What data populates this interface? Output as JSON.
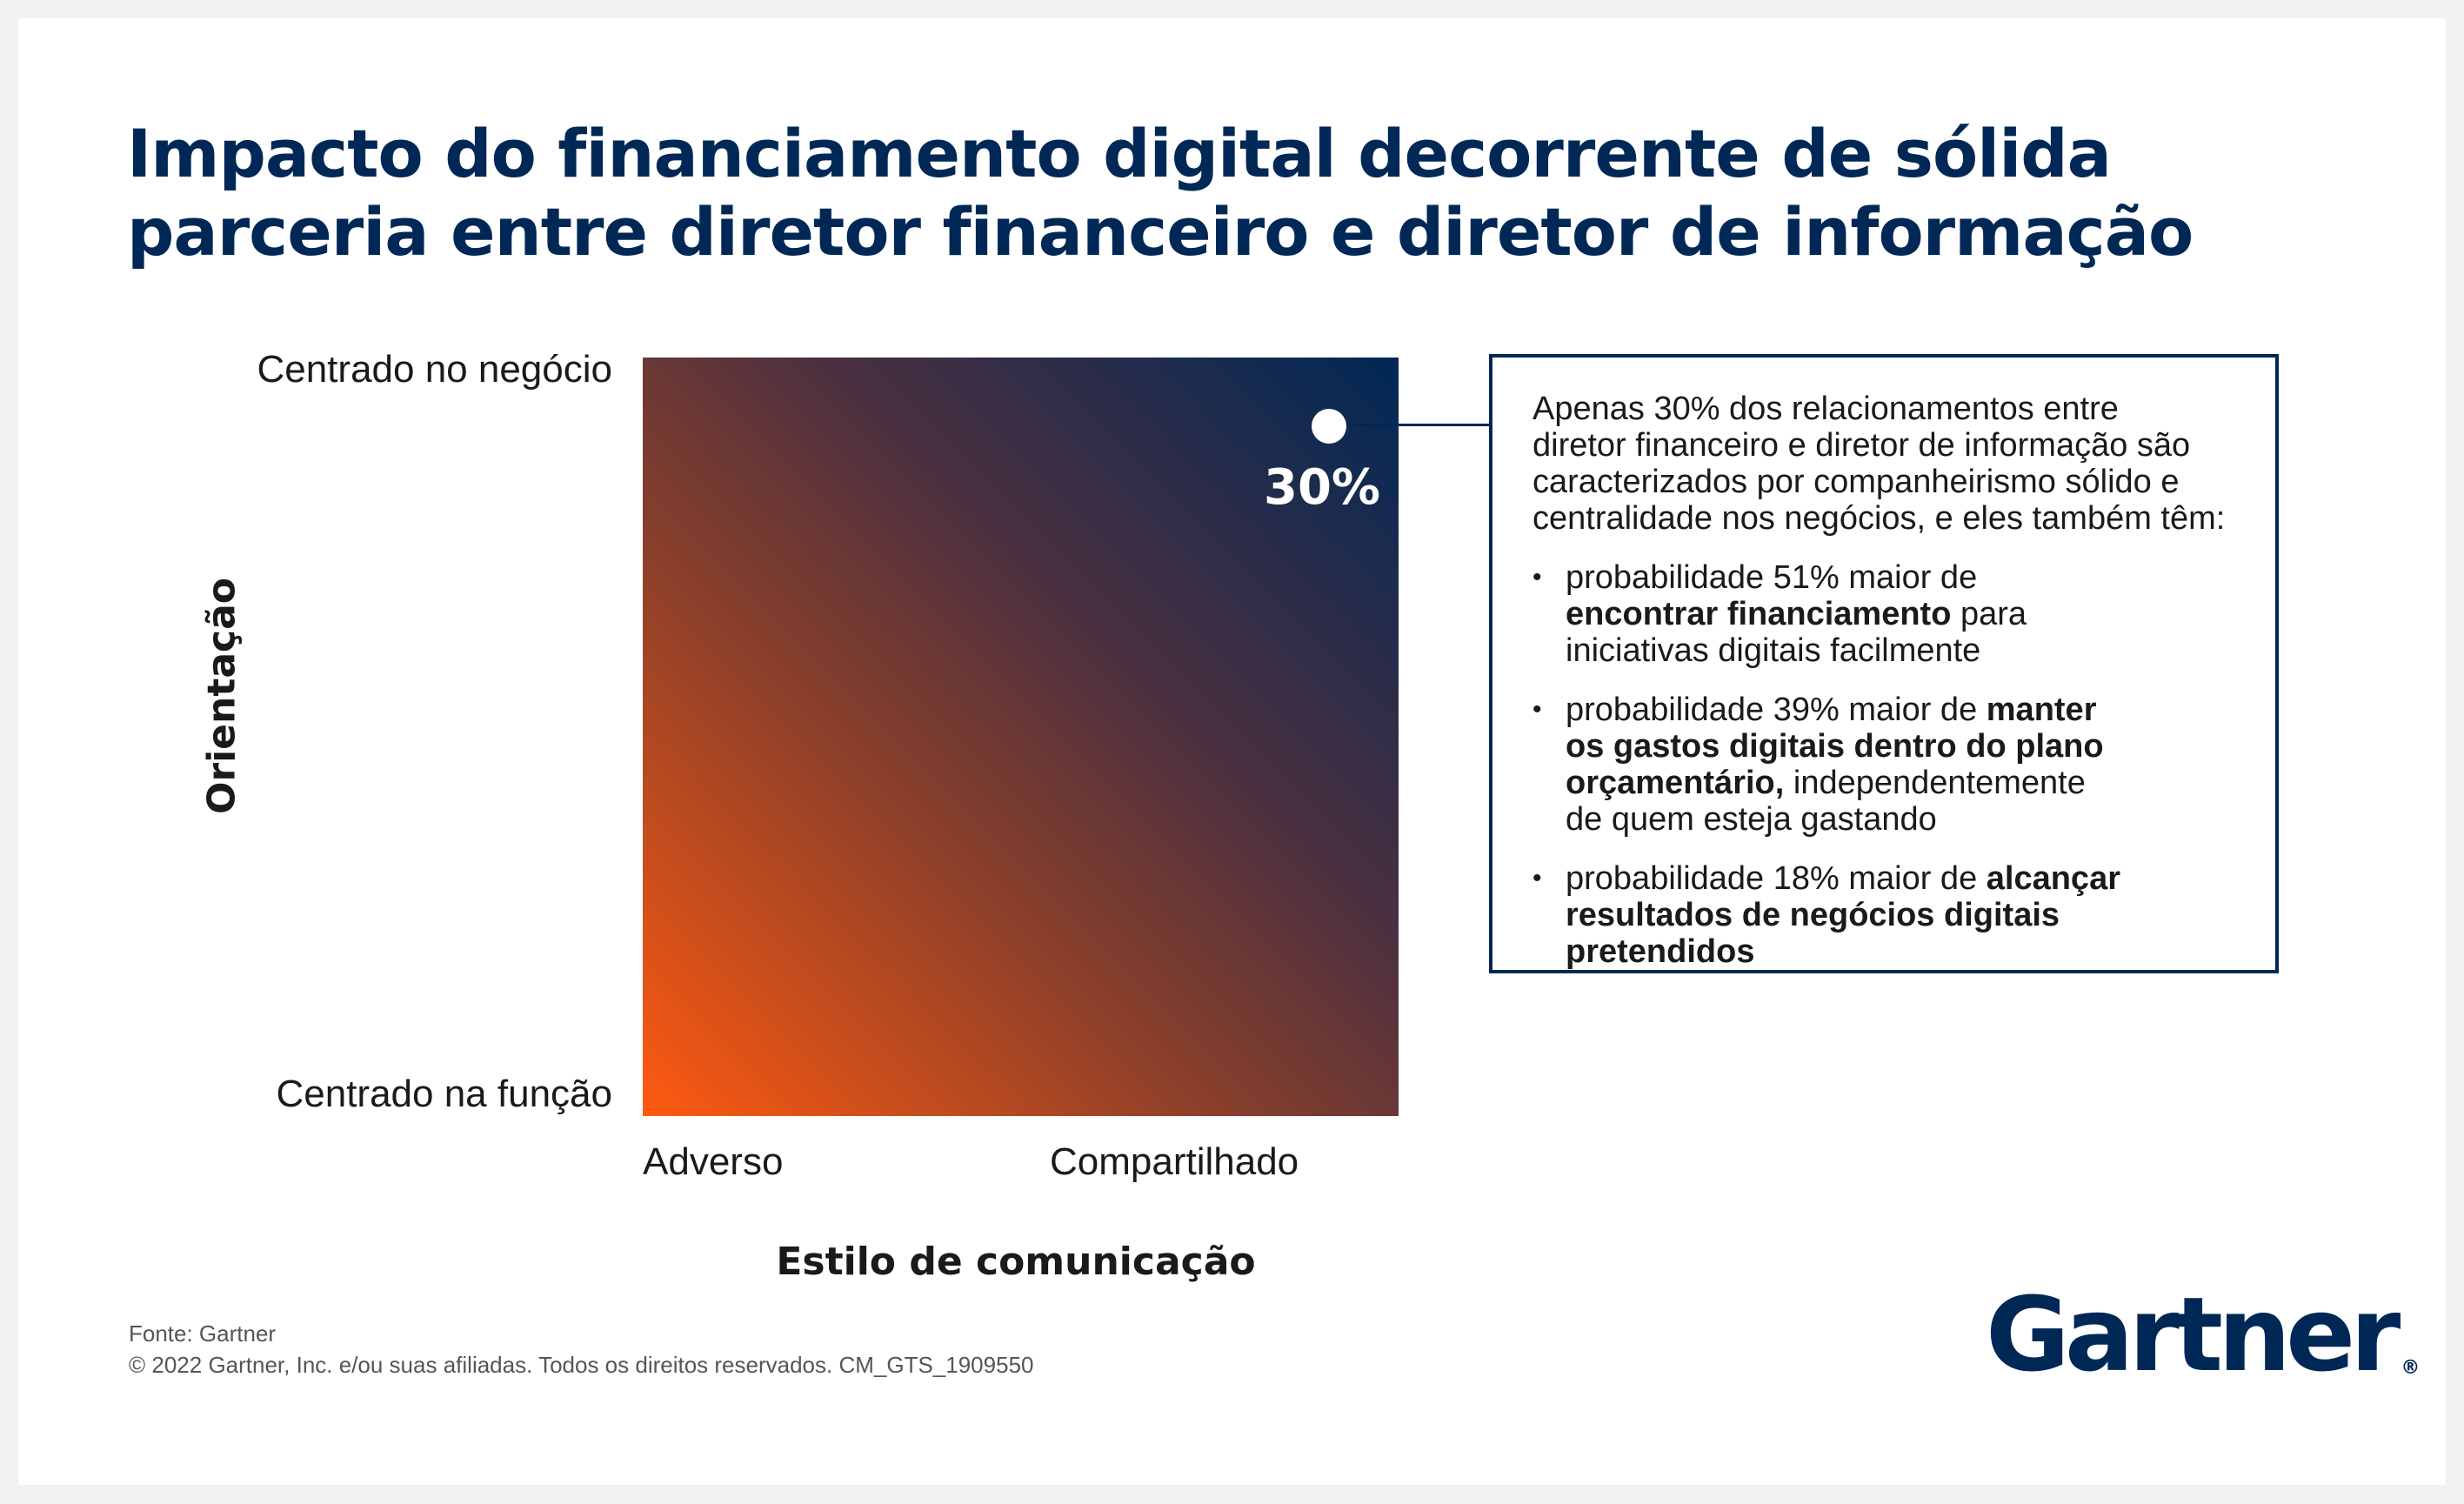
{
  "title_lines": [
    "Impacto do financiamento digital decorrente de sólida",
    "parceria entre diretor financeiro e diretor de informação"
  ],
  "chart_data": {
    "type": "scatter",
    "title": "Impacto do financiamento digital decorrente de sólida parceria entre diretor financeiro e diretor de informação",
    "xlabel": "Estilo de comunicação",
    "ylabel": "Orientação",
    "x_ticks": [
      "Adverso",
      "Compartilhado"
    ],
    "y_ticks": [
      "Centrado no negócio",
      "Centrado na função"
    ],
    "points": [
      {
        "x": "Compartilhado",
        "y": "Centrado no negócio",
        "label": "30%"
      }
    ],
    "gradient_colors": {
      "low": "#ff5a10",
      "high": "#002856"
    }
  },
  "callout": {
    "intro": "Apenas 30% dos relacionamentos entre\ndiretor financeiro e diretor de informação são\ncaracterizados por companheirismo sólido e\ncentralidade nos negócios, e eles também têm:",
    "bullets": [
      {
        "pre": "probabilidade 51% maior de\n",
        "bold": "encontrar financiamento",
        "post": " para\niniciativas digitais facilmente"
      },
      {
        "pre": "probabilidade 39% maior de ",
        "bold": "manter\nos gastos digitais dentro do plano\norçamentário,",
        "post": " independentemente\nde quem esteja gastando"
      },
      {
        "pre": "probabilidade 18% maior de ",
        "bold": "alcançar\nresultados de negócios digitais pretendidos",
        "post": ""
      }
    ]
  },
  "footer": {
    "source": "Fonte: Gartner",
    "copyright": "© 2022 Gartner, Inc. e/ou suas afiliadas. Todos os direitos reservados. CM_GTS_1909550"
  },
  "logo": {
    "text": "Gartner",
    "mark": "®"
  },
  "colors": {
    "brand": "#002856"
  }
}
